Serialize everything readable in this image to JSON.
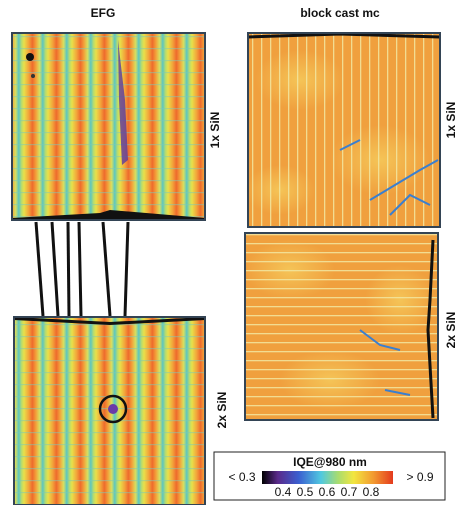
{
  "panels": {
    "columns": [
      "EFG",
      "block cast mc"
    ],
    "rows_left": [
      "1x SiN",
      "2x SiN"
    ],
    "rows_right": [
      "1x SiN",
      "2x SiN"
    ]
  },
  "colorbar": {
    "title": "IQE@980 nm",
    "min_label": "< 0.3",
    "max_label": "> 0.9",
    "ticks": [
      0.4,
      0.5,
      0.6,
      0.7,
      0.8
    ]
  }
}
